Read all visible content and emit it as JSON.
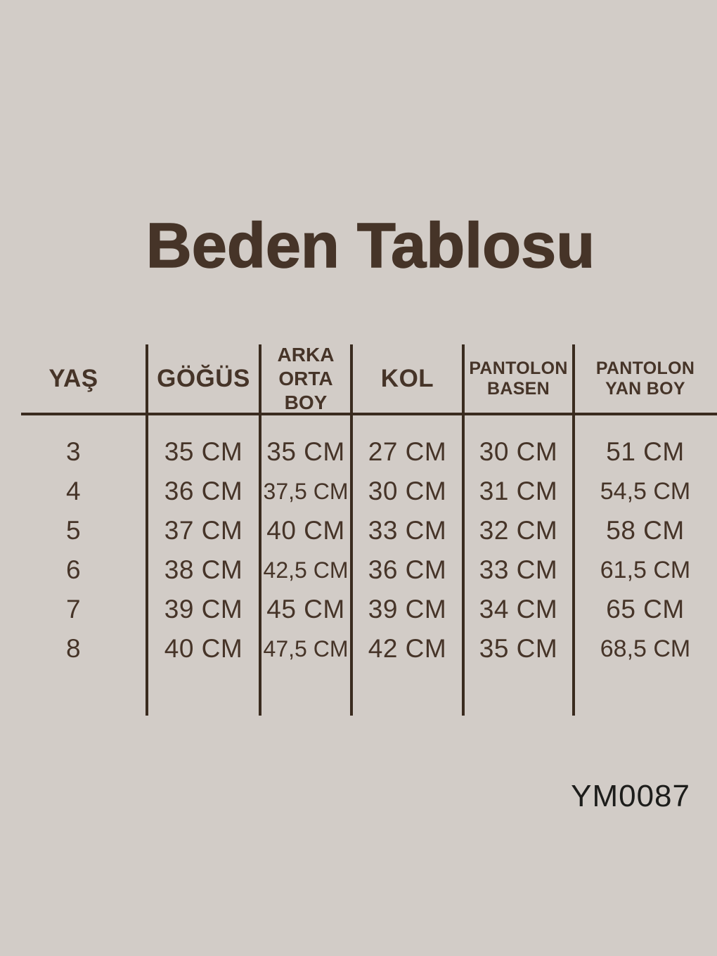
{
  "page": {
    "title": "Beden Tablosu",
    "product_code": "YM0087",
    "colors": {
      "background": "#d2ccc7",
      "text": "#463428",
      "grid": "#3a2b1f",
      "code": "#1d1d1b"
    }
  },
  "chart_data": {
    "type": "table",
    "title": "Beden Tablosu",
    "columns": [
      "YAŞ",
      "GÖĞÜS",
      "ARKA ORTA BOY",
      "KOL",
      "PANTOLON BASEN",
      "PANTOLON YAN BOY"
    ],
    "rows": [
      [
        "3",
        "35 CM",
        "35 CM",
        "27 CM",
        "30 CM",
        "51 CM"
      ],
      [
        "4",
        "36 CM",
        "37,5 CM",
        "30 CM",
        "31 CM",
        "54,5 CM"
      ],
      [
        "5",
        "37 CM",
        "40 CM",
        "33 CM",
        "32 CM",
        "58 CM"
      ],
      [
        "6",
        "38 CM",
        "42,5 CM",
        "36 CM",
        "33 CM",
        "61,5 CM"
      ],
      [
        "7",
        "39 CM",
        "45 CM",
        "39 CM",
        "34 CM",
        "65 CM"
      ],
      [
        "8",
        "40 CM",
        "47,5 CM",
        "42 CM",
        "35 CM",
        "68,5 CM"
      ]
    ],
    "unit": "CM",
    "footnote": "YM0087",
    "layout": {
      "grid": "vertical dividers + single header rule",
      "legend_position": "none"
    }
  },
  "table_display": {
    "header_lines": [
      [
        "YAŞ"
      ],
      [
        "GÖĞÜS"
      ],
      [
        "ARKA",
        "ORTA",
        "BOY"
      ],
      [
        "KOL"
      ],
      [
        "PANTOLON",
        "BASEN"
      ],
      [
        "PANTOLON",
        "YAN BOY"
      ]
    ]
  }
}
